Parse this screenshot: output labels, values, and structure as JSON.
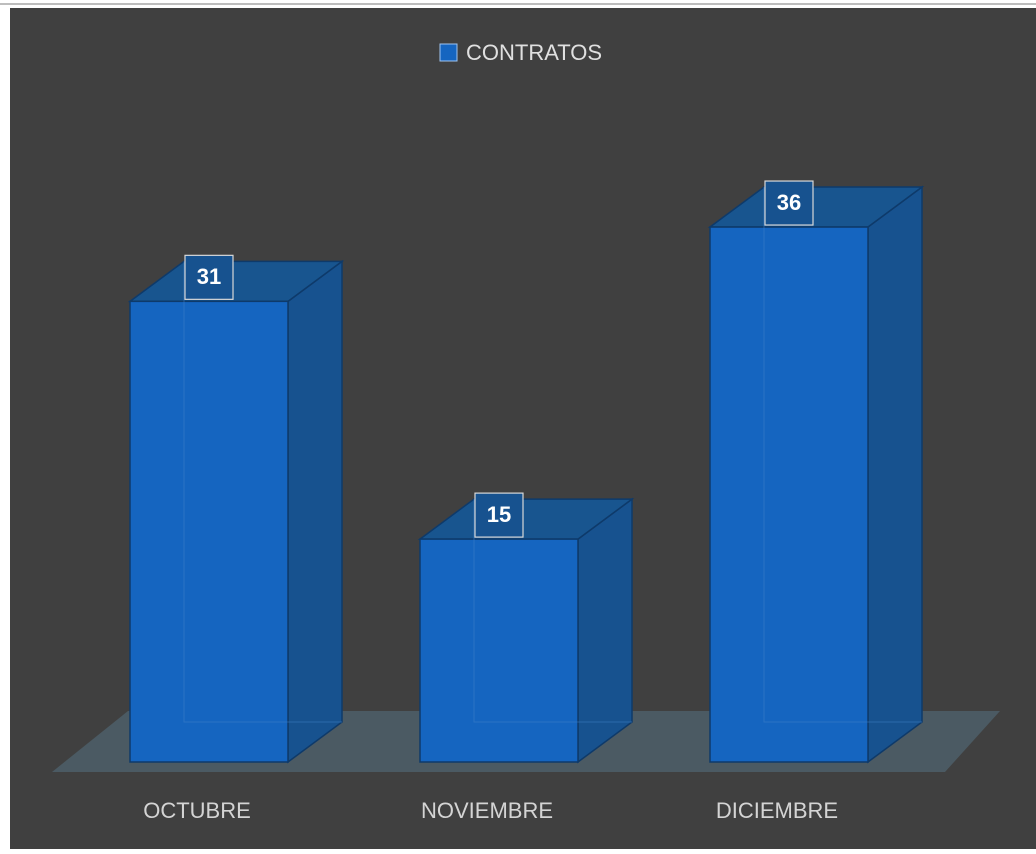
{
  "chart_data": {
    "type": "bar3d",
    "categories": [
      "OCTUBRE",
      "NOVIEMBRE",
      "DICIEMBRE"
    ],
    "series": [
      {
        "name": "CONTRATOS",
        "color": "#1565c0",
        "values": [
          31,
          15,
          36
        ]
      }
    ]
  }
}
